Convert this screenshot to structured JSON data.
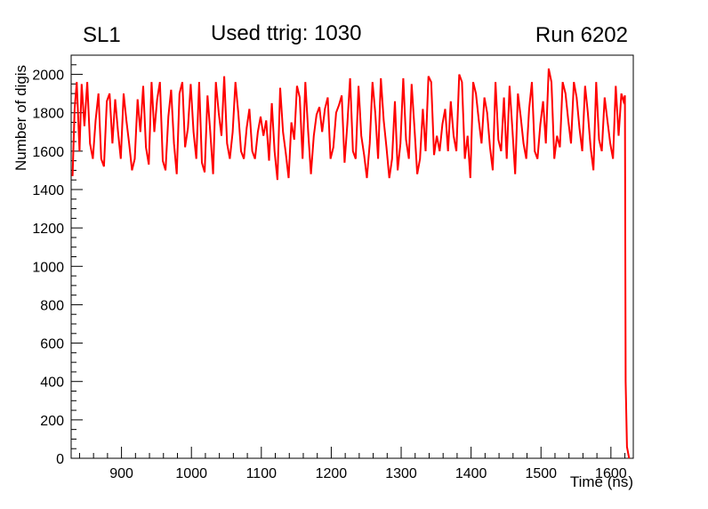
{
  "header": {
    "left_title": "SL1",
    "center_title": "Used ttrig: 1030",
    "right_title": "Run 6202"
  },
  "chart_data": {
    "type": "line",
    "title": "Used ttrig: 1030",
    "pad_left_label": "SL1",
    "pad_right_label": "Run 6202",
    "xlabel": "Time (ns)",
    "ylabel": "Number of digis",
    "series_color": "#ff0000",
    "axis_color": "#000000",
    "xlim": [
      828,
      1632
    ],
    "ylim": [
      0,
      2100
    ],
    "x_ticks": [
      900,
      1000,
      1100,
      1200,
      1300,
      1400,
      1500,
      1600
    ],
    "y_ticks": [
      0,
      200,
      400,
      600,
      800,
      1000,
      1200,
      1400,
      1600,
      1800,
      2000
    ],
    "x_minor_step": 20,
    "y_minor_step": 50,
    "legend": "none",
    "grid": false,
    "points": [
      [
        830,
        1470
      ],
      [
        833,
        1820
      ],
      [
        836,
        1960
      ],
      [
        840,
        1600
      ],
      [
        843,
        1950
      ],
      [
        847,
        1730
      ],
      [
        851,
        1960
      ],
      [
        855,
        1640
      ],
      [
        859,
        1560
      ],
      [
        863,
        1760
      ],
      [
        867,
        1900
      ],
      [
        871,
        1560
      ],
      [
        875,
        1520
      ],
      [
        879,
        1860
      ],
      [
        883,
        1900
      ],
      [
        887,
        1640
      ],
      [
        891,
        1870
      ],
      [
        895,
        1700
      ],
      [
        899,
        1560
      ],
      [
        903,
        1900
      ],
      [
        907,
        1760
      ],
      [
        911,
        1640
      ],
      [
        915,
        1500
      ],
      [
        919,
        1560
      ],
      [
        923,
        1870
      ],
      [
        927,
        1700
      ],
      [
        931,
        1940
      ],
      [
        935,
        1620
      ],
      [
        939,
        1530
      ],
      [
        943,
        1960
      ],
      [
        947,
        1700
      ],
      [
        951,
        1870
      ],
      [
        955,
        1960
      ],
      [
        959,
        1550
      ],
      [
        963,
        1500
      ],
      [
        967,
        1780
      ],
      [
        971,
        1920
      ],
      [
        975,
        1640
      ],
      [
        979,
        1480
      ],
      [
        983,
        1900
      ],
      [
        987,
        1960
      ],
      [
        991,
        1620
      ],
      [
        995,
        1720
      ],
      [
        999,
        1950
      ],
      [
        1003,
        1700
      ],
      [
        1007,
        1560
      ],
      [
        1011,
        1960
      ],
      [
        1015,
        1540
      ],
      [
        1019,
        1490
      ],
      [
        1023,
        1890
      ],
      [
        1027,
        1700
      ],
      [
        1031,
        1480
      ],
      [
        1035,
        1960
      ],
      [
        1039,
        1800
      ],
      [
        1043,
        1680
      ],
      [
        1047,
        1990
      ],
      [
        1051,
        1640
      ],
      [
        1055,
        1560
      ],
      [
        1059,
        1700
      ],
      [
        1063,
        1960
      ],
      [
        1067,
        1800
      ],
      [
        1071,
        1600
      ],
      [
        1075,
        1560
      ],
      [
        1079,
        1720
      ],
      [
        1083,
        1820
      ],
      [
        1087,
        1600
      ],
      [
        1091,
        1560
      ],
      [
        1095,
        1700
      ],
      [
        1099,
        1780
      ],
      [
        1103,
        1680
      ],
      [
        1107,
        1760
      ],
      [
        1111,
        1550
      ],
      [
        1115,
        1850
      ],
      [
        1119,
        1600
      ],
      [
        1123,
        1450
      ],
      [
        1127,
        1930
      ],
      [
        1131,
        1700
      ],
      [
        1135,
        1590
      ],
      [
        1139,
        1460
      ],
      [
        1143,
        1750
      ],
      [
        1147,
        1660
      ],
      [
        1151,
        1940
      ],
      [
        1155,
        1880
      ],
      [
        1159,
        1560
      ],
      [
        1163,
        1960
      ],
      [
        1167,
        1700
      ],
      [
        1171,
        1480
      ],
      [
        1175,
        1680
      ],
      [
        1179,
        1790
      ],
      [
        1183,
        1830
      ],
      [
        1187,
        1700
      ],
      [
        1191,
        1820
      ],
      [
        1195,
        1880
      ],
      [
        1199,
        1560
      ],
      [
        1203,
        1620
      ],
      [
        1207,
        1800
      ],
      [
        1211,
        1840
      ],
      [
        1215,
        1890
      ],
      [
        1219,
        1540
      ],
      [
        1223,
        1740
      ],
      [
        1227,
        1980
      ],
      [
        1231,
        1600
      ],
      [
        1235,
        1560
      ],
      [
        1239,
        1940
      ],
      [
        1243,
        1680
      ],
      [
        1247,
        1580
      ],
      [
        1251,
        1460
      ],
      [
        1255,
        1640
      ],
      [
        1259,
        1960
      ],
      [
        1263,
        1800
      ],
      [
        1267,
        1560
      ],
      [
        1271,
        1980
      ],
      [
        1275,
        1760
      ],
      [
        1279,
        1620
      ],
      [
        1283,
        1460
      ],
      [
        1287,
        1560
      ],
      [
        1291,
        1860
      ],
      [
        1295,
        1500
      ],
      [
        1299,
        1640
      ],
      [
        1303,
        1980
      ],
      [
        1307,
        1660
      ],
      [
        1311,
        1560
      ],
      [
        1315,
        1950
      ],
      [
        1319,
        1720
      ],
      [
        1323,
        1480
      ],
      [
        1327,
        1560
      ],
      [
        1331,
        1820
      ],
      [
        1335,
        1600
      ],
      [
        1339,
        1990
      ],
      [
        1343,
        1960
      ],
      [
        1347,
        1580
      ],
      [
        1351,
        1680
      ],
      [
        1355,
        1600
      ],
      [
        1359,
        1740
      ],
      [
        1363,
        1820
      ],
      [
        1367,
        1600
      ],
      [
        1371,
        1860
      ],
      [
        1375,
        1680
      ],
      [
        1379,
        1600
      ],
      [
        1383,
        2000
      ],
      [
        1387,
        1960
      ],
      [
        1391,
        1560
      ],
      [
        1395,
        1680
      ],
      [
        1399,
        1460
      ],
      [
        1403,
        1960
      ],
      [
        1407,
        1900
      ],
      [
        1411,
        1760
      ],
      [
        1415,
        1640
      ],
      [
        1419,
        1880
      ],
      [
        1423,
        1800
      ],
      [
        1427,
        1620
      ],
      [
        1431,
        1500
      ],
      [
        1435,
        1960
      ],
      [
        1439,
        1660
      ],
      [
        1443,
        1600
      ],
      [
        1447,
        1880
      ],
      [
        1451,
        1560
      ],
      [
        1455,
        1940
      ],
      [
        1459,
        1720
      ],
      [
        1463,
        1480
      ],
      [
        1467,
        1900
      ],
      [
        1471,
        1780
      ],
      [
        1475,
        1640
      ],
      [
        1479,
        1560
      ],
      [
        1483,
        1820
      ],
      [
        1487,
        1960
      ],
      [
        1491,
        1600
      ],
      [
        1495,
        1560
      ],
      [
        1499,
        1740
      ],
      [
        1503,
        1860
      ],
      [
        1507,
        1640
      ],
      [
        1511,
        2030
      ],
      [
        1515,
        1960
      ],
      [
        1519,
        1560
      ],
      [
        1523,
        1680
      ],
      [
        1527,
        1620
      ],
      [
        1531,
        1960
      ],
      [
        1535,
        1900
      ],
      [
        1539,
        1760
      ],
      [
        1543,
        1640
      ],
      [
        1547,
        1960
      ],
      [
        1551,
        1880
      ],
      [
        1555,
        1720
      ],
      [
        1559,
        1600
      ],
      [
        1563,
        1940
      ],
      [
        1567,
        1800
      ],
      [
        1571,
        1620
      ],
      [
        1575,
        1500
      ],
      [
        1579,
        1960
      ],
      [
        1583,
        1660
      ],
      [
        1587,
        1600
      ],
      [
        1591,
        1880
      ],
      [
        1595,
        1760
      ],
      [
        1599,
        1640
      ],
      [
        1603,
        1560
      ],
      [
        1607,
        1940
      ],
      [
        1611,
        1680
      ],
      [
        1615,
        1900
      ],
      [
        1618,
        1860
      ],
      [
        1620,
        1890
      ],
      [
        1621,
        400
      ],
      [
        1623,
        60
      ],
      [
        1626,
        0
      ]
    ]
  }
}
